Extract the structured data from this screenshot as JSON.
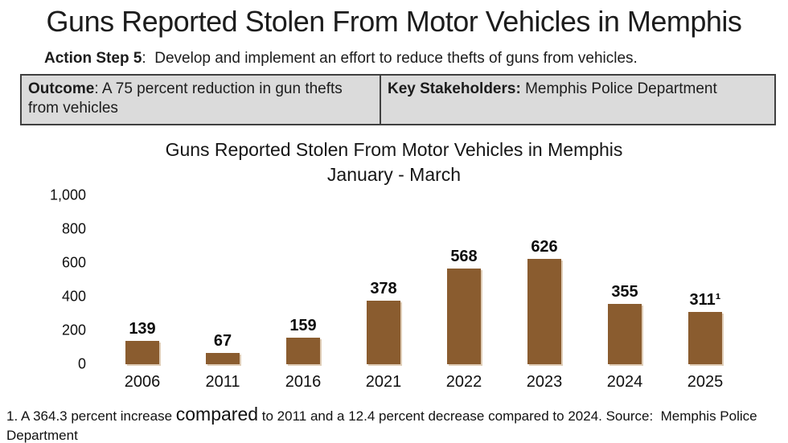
{
  "page": {
    "title": "Guns Reported Stolen From Motor Vehicles in Memphis",
    "action_step": {
      "label": "Action Step 5",
      "text": ":  Develop and implement an effort to reduce thefts of guns from vehicles."
    },
    "info_table": {
      "outcome_label": "Outcome",
      "outcome_text": ": A 75 percent reduction in gun thefts from vehicles",
      "stakeholders_label": "Key Stakeholders:",
      "stakeholders_text": " Memphis Police Department"
    },
    "footnote": {
      "part1": "1. A 364.3 percent increase ",
      "big_word": "compared",
      "part2": " to 2011 and a 12.4 percent decrease compared to 2024. Source:  Memphis Police Department"
    }
  },
  "colors": {
    "bar": "#8a5c2f",
    "table_bg": "#dbdbdb",
    "table_border": "#404040",
    "text": "#1c1c1c"
  },
  "chart_data": {
    "type": "bar",
    "title": "Guns Reported Stolen From Motor Vehicles in Memphis",
    "subtitle": "January - March",
    "categories": [
      "2006",
      "2011",
      "2016",
      "2021",
      "2022",
      "2023",
      "2024",
      "2025"
    ],
    "values": [
      139,
      67,
      159,
      378,
      568,
      626,
      355,
      311
    ],
    "value_labels": [
      "139",
      "67",
      "159",
      "378",
      "568",
      "626",
      "355",
      "311¹"
    ],
    "xlabel": "",
    "ylabel": "",
    "y_ticks": [
      "1,000",
      "800",
      "600",
      "400",
      "200",
      "0"
    ],
    "ylim": [
      0,
      1000
    ],
    "grid": false,
    "legend": false,
    "bar_color": "#8a5c2f"
  }
}
